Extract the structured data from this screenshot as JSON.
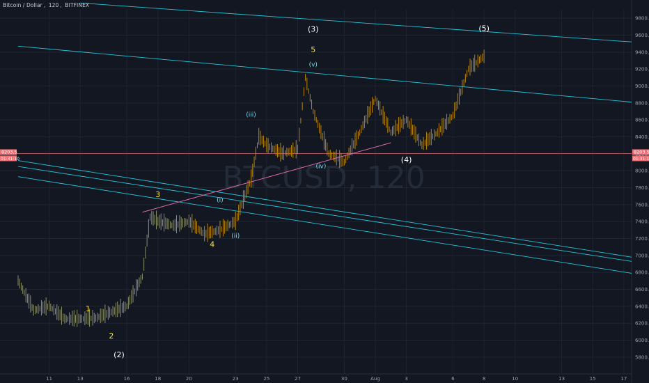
{
  "header": {
    "symbol": "Bitcoin / Dollar",
    "interval": "120",
    "exchange": "BITFINEX"
  },
  "watermark": "BTCUSD, 120",
  "price_tag": {
    "price": "8203.5",
    "countdown": "01:31:10"
  },
  "colors": {
    "background": "#131722",
    "grid": "#1f2431",
    "candle": "#b8860b",
    "channel": "#26c6da",
    "trendline": "#d86aa8",
    "hline": "#ee6e73",
    "wave_yellow": "#f4e34b",
    "wave_white": "#ffffff",
    "wave_cyan": "#7fdcea"
  },
  "chart_data": {
    "type": "line",
    "title": "",
    "xlabel": "",
    "ylabel": "",
    "ylim": [
      5700,
      9900
    ],
    "y_ticks": [
      5800,
      6000,
      6200,
      6400,
      6600,
      6800,
      7000,
      7200,
      7400,
      7600,
      7800,
      8000,
      8200,
      8400,
      8600,
      8800,
      9000,
      9200,
      9400,
      9600,
      9800
    ],
    "y_tick_labels": [
      "5800.0",
      "6000.0",
      "6200.0",
      "6400.0",
      "6600.0",
      "6800.0",
      "7000.0",
      "7200.0",
      "7400.0",
      "7600.0",
      "7800.0",
      "8000.0",
      "8200.0",
      "8400.0",
      "8600.0",
      "8800.0",
      "9000.0",
      "9200.0",
      "9400.0",
      "9600.0",
      "9800.0"
    ],
    "x_range": [
      "2018-07-09",
      "2018-08-17T12:00"
    ],
    "x_ticks": [
      {
        "label": "11",
        "date": "2018-07-11"
      },
      {
        "label": "13",
        "date": "2018-07-13"
      },
      {
        "label": "16",
        "date": "2018-07-16"
      },
      {
        "label": "18",
        "date": "2018-07-18"
      },
      {
        "label": "20",
        "date": "2018-07-20"
      },
      {
        "label": "23",
        "date": "2018-07-23"
      },
      {
        "label": "25",
        "date": "2018-07-25"
      },
      {
        "label": "27",
        "date": "2018-07-27"
      },
      {
        "label": "30",
        "date": "2018-07-30"
      },
      {
        "label": "Aug",
        "date": "2018-08-01"
      },
      {
        "label": "3",
        "date": "2018-08-03"
      },
      {
        "label": "6",
        "date": "2018-08-06"
      },
      {
        "label": "8",
        "date": "2018-08-08"
      },
      {
        "label": "10",
        "date": "2018-08-10"
      },
      {
        "label": "13",
        "date": "2018-08-13"
      },
      {
        "label": "15",
        "date": "2018-08-15"
      },
      {
        "label": "17",
        "date": "2018-08-17"
      }
    ],
    "series": [
      {
        "type": "ohlc_approx",
        "x": [
          "2018-07-09",
          "2018-07-10",
          "2018-07-11",
          "2018-07-12",
          "2018-07-13",
          "2018-07-14",
          "2018-07-15",
          "2018-07-16",
          "2018-07-17",
          "2018-07-17T12:00",
          "2018-07-18",
          "2018-07-19",
          "2018-07-20",
          "2018-07-21",
          "2018-07-22",
          "2018-07-23",
          "2018-07-23T12:00",
          "2018-07-24",
          "2018-07-24T12:00",
          "2018-07-25",
          "2018-07-26",
          "2018-07-27",
          "2018-07-27T12:00",
          "2018-07-28",
          "2018-07-29",
          "2018-07-30",
          "2018-07-31",
          "2018-08-01",
          "2018-08-02",
          "2018-08-03",
          "2018-08-04",
          "2018-08-05",
          "2018-08-06",
          "2018-08-07",
          "2018-08-08"
        ],
        "values": [
          6700,
          6350,
          6400,
          6250,
          6250,
          6260,
          6330,
          6400,
          6750,
          7450,
          7400,
          7350,
          7400,
          7250,
          7300,
          7400,
          7650,
          7900,
          8400,
          8300,
          8200,
          8250,
          9100,
          8700,
          8200,
          8100,
          8450,
          8850,
          8450,
          8600,
          8300,
          8450,
          8650,
          9200,
          9350
        ]
      }
    ],
    "channel_lines": [
      {
        "x": [
          "2018-07-13",
          "2018-08-17T12:00"
        ],
        "y": [
          9980,
          9520
        ]
      },
      {
        "x": [
          "2018-07-09",
          "2018-08-17T12:00"
        ],
        "y": [
          9470,
          8810
        ]
      },
      {
        "x": [
          "2018-07-09",
          "2018-08-17T12:00"
        ],
        "y": [
          8120,
          6980
        ]
      },
      {
        "x": [
          "2018-07-09",
          "2018-08-17T12:00"
        ],
        "y": [
          8050,
          6930
        ]
      },
      {
        "x": [
          "2018-07-09",
          "2018-08-17T12:00"
        ],
        "y": [
          7930,
          6790
        ]
      }
    ],
    "trendline": {
      "x": [
        "2018-07-17",
        "2018-08-02"
      ],
      "y": [
        7510,
        8330
      ]
    },
    "horizontal_line": 8203.5,
    "wave_labels": [
      {
        "text": "1",
        "x": "2018-07-13T12:00",
        "y": 6340,
        "color": "wave_yellow"
      },
      {
        "text": "2",
        "x": "2018-07-15",
        "y": 6020,
        "color": "wave_yellow"
      },
      {
        "text": "(2)",
        "x": "2018-07-15T12:00",
        "y": 5800,
        "color": "wave_white"
      },
      {
        "text": "3",
        "x": "2018-07-18",
        "y": 7690,
        "color": "wave_yellow"
      },
      {
        "text": "4",
        "x": "2018-07-21T12:00",
        "y": 7100,
        "color": "wave_yellow"
      },
      {
        "text": "(i)",
        "x": "2018-07-22",
        "y": 7630,
        "color": "wave_cyan"
      },
      {
        "text": "(ii)",
        "x": "2018-07-23",
        "y": 7210,
        "color": "wave_cyan"
      },
      {
        "text": "(iii)",
        "x": "2018-07-24",
        "y": 8640,
        "color": "wave_cyan"
      },
      {
        "text": "(iv)",
        "x": "2018-07-28T12:00",
        "y": 8030,
        "color": "wave_cyan"
      },
      {
        "text": "(v)",
        "x": "2018-07-28",
        "y": 9230,
        "color": "wave_cyan"
      },
      {
        "text": "5",
        "x": "2018-07-28",
        "y": 9400,
        "color": "wave_yellow"
      },
      {
        "text": "(3)",
        "x": "2018-07-28",
        "y": 9640,
        "color": "wave_white"
      },
      {
        "text": "(4)",
        "x": "2018-08-03",
        "y": 8100,
        "color": "wave_white"
      },
      {
        "text": "(5)",
        "x": "2018-08-08",
        "y": 9650,
        "color": "wave_white"
      }
    ]
  }
}
